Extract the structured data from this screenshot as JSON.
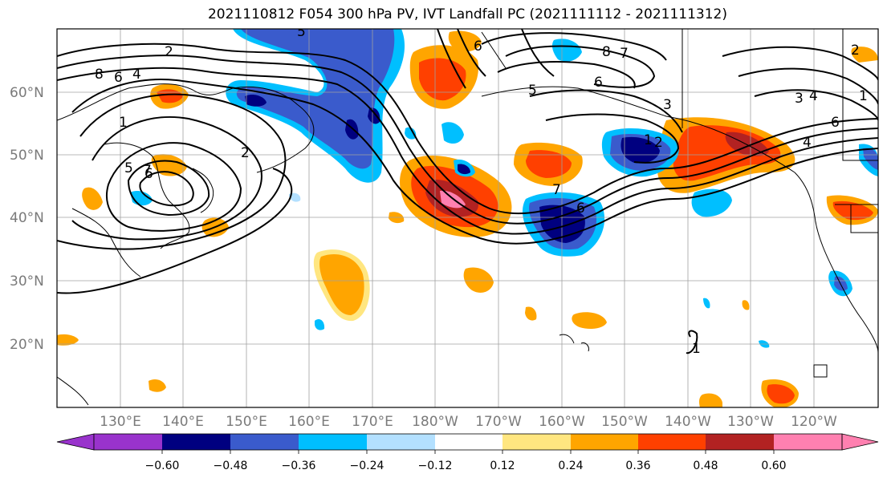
{
  "title": "2021110812 F054 300 hPa PV, IVT Landfall PC (2021111112 - 2021111312)",
  "lat_labels": [
    "60°N",
    "50°N",
    "40°N",
    "30°N",
    "20°N"
  ],
  "lon_labels": [
    "130°E",
    "140°E",
    "150°E",
    "160°E",
    "170°E",
    "180°W",
    "170°W",
    "160°W",
    "150°W",
    "140°W",
    "130°W",
    "120°W"
  ],
  "colorbar": {
    "ticks": [
      "−0.60",
      "−0.48",
      "−0.36",
      "−0.24",
      "−0.12",
      "0.12",
      "0.24",
      "0.36",
      "0.48",
      "0.60"
    ],
    "colors": [
      "#9933cc",
      "#000080",
      "#3a5bcc",
      "#00bfff",
      "#b3e0ff",
      "#ffffff",
      "#ffe680",
      "#ffa500",
      "#ff4000",
      "#b22222",
      "#ff80b0"
    ]
  },
  "contour_labels": [
    "8",
    "6",
    "4",
    "2",
    "7",
    "6",
    "5",
    "2",
    "1",
    "6",
    "8",
    "7",
    "6",
    "5",
    "3",
    "1",
    "2",
    "4",
    "6",
    "2",
    "7",
    "6",
    "3",
    "4",
    "5",
    "1",
    "1"
  ]
}
